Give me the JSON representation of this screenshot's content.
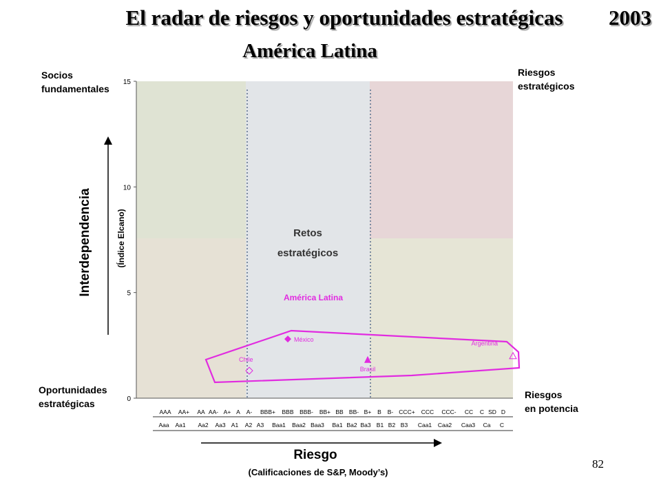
{
  "title": "El radar de riesgos y oportunidades estratégicas",
  "year": "2003",
  "subtitle": "América Latina",
  "corners": {
    "top_left": "Socios\nfundamentales",
    "top_right": "Riesgos\nestratégicos",
    "bottom_left": "Oportunidades\nestratégicas",
    "bottom_right": "Riesgos\nen potencia"
  },
  "page_number": "82",
  "chart_data": {
    "type": "scatter",
    "xlabel": "Riesgo",
    "xlabel_sub": "(Calificaciones de S&P, Moody’s)",
    "ylabel": "Interdependencia",
    "ylabel_sub": "(Índice Elcano)",
    "ylim": [
      0,
      15
    ],
    "yticks": [
      0,
      5,
      10,
      15
    ],
    "sp_ratings": [
      "AAA",
      "AA+",
      "AA",
      "AA-",
      "A+",
      "A",
      "A-",
      "BBB+",
      "BBB",
      "BBB-",
      "BB+",
      "BB",
      "BB-",
      "B+",
      "B",
      "B-",
      "CCC+",
      "CCC",
      "CCC-",
      "CC",
      "C",
      "SD",
      "D"
    ],
    "moodys_ratings": [
      "Aaa",
      "Aa1",
      "Aa2",
      "Aa3",
      "A1",
      "A2",
      "A3",
      "Baa1",
      "Baa2",
      "Baa3",
      "Ba1",
      "Ba2",
      "Ba3",
      "B1",
      "B2",
      "B3",
      "Caa1",
      "Caa2",
      "Caa3",
      "Ca",
      "C"
    ],
    "center_label_1": "Retos",
    "center_label_2": "estratégicos",
    "group_label": "América Latina",
    "points": [
      {
        "name": "Chile",
        "rating": "A-",
        "y": 1.3,
        "marker": "diamond-open"
      },
      {
        "name": "México",
        "rating": "BBB",
        "y": 2.8,
        "marker": "diamond"
      },
      {
        "name": "Brasil",
        "rating": "B+",
        "y": 1.8,
        "marker": "triangle"
      },
      {
        "name": "Argentina",
        "rating": "D",
        "y": 1.9,
        "marker": "triangle-open"
      }
    ],
    "colors": {
      "socios": "#dfe3d3",
      "oportunidades": "#e6e1d5",
      "retos": "#e2e5e8",
      "riesgos_estrategicos": "#e7d6d7",
      "riesgos_potencia": "#e6e5d6",
      "highlight": "#e12be0"
    }
  }
}
